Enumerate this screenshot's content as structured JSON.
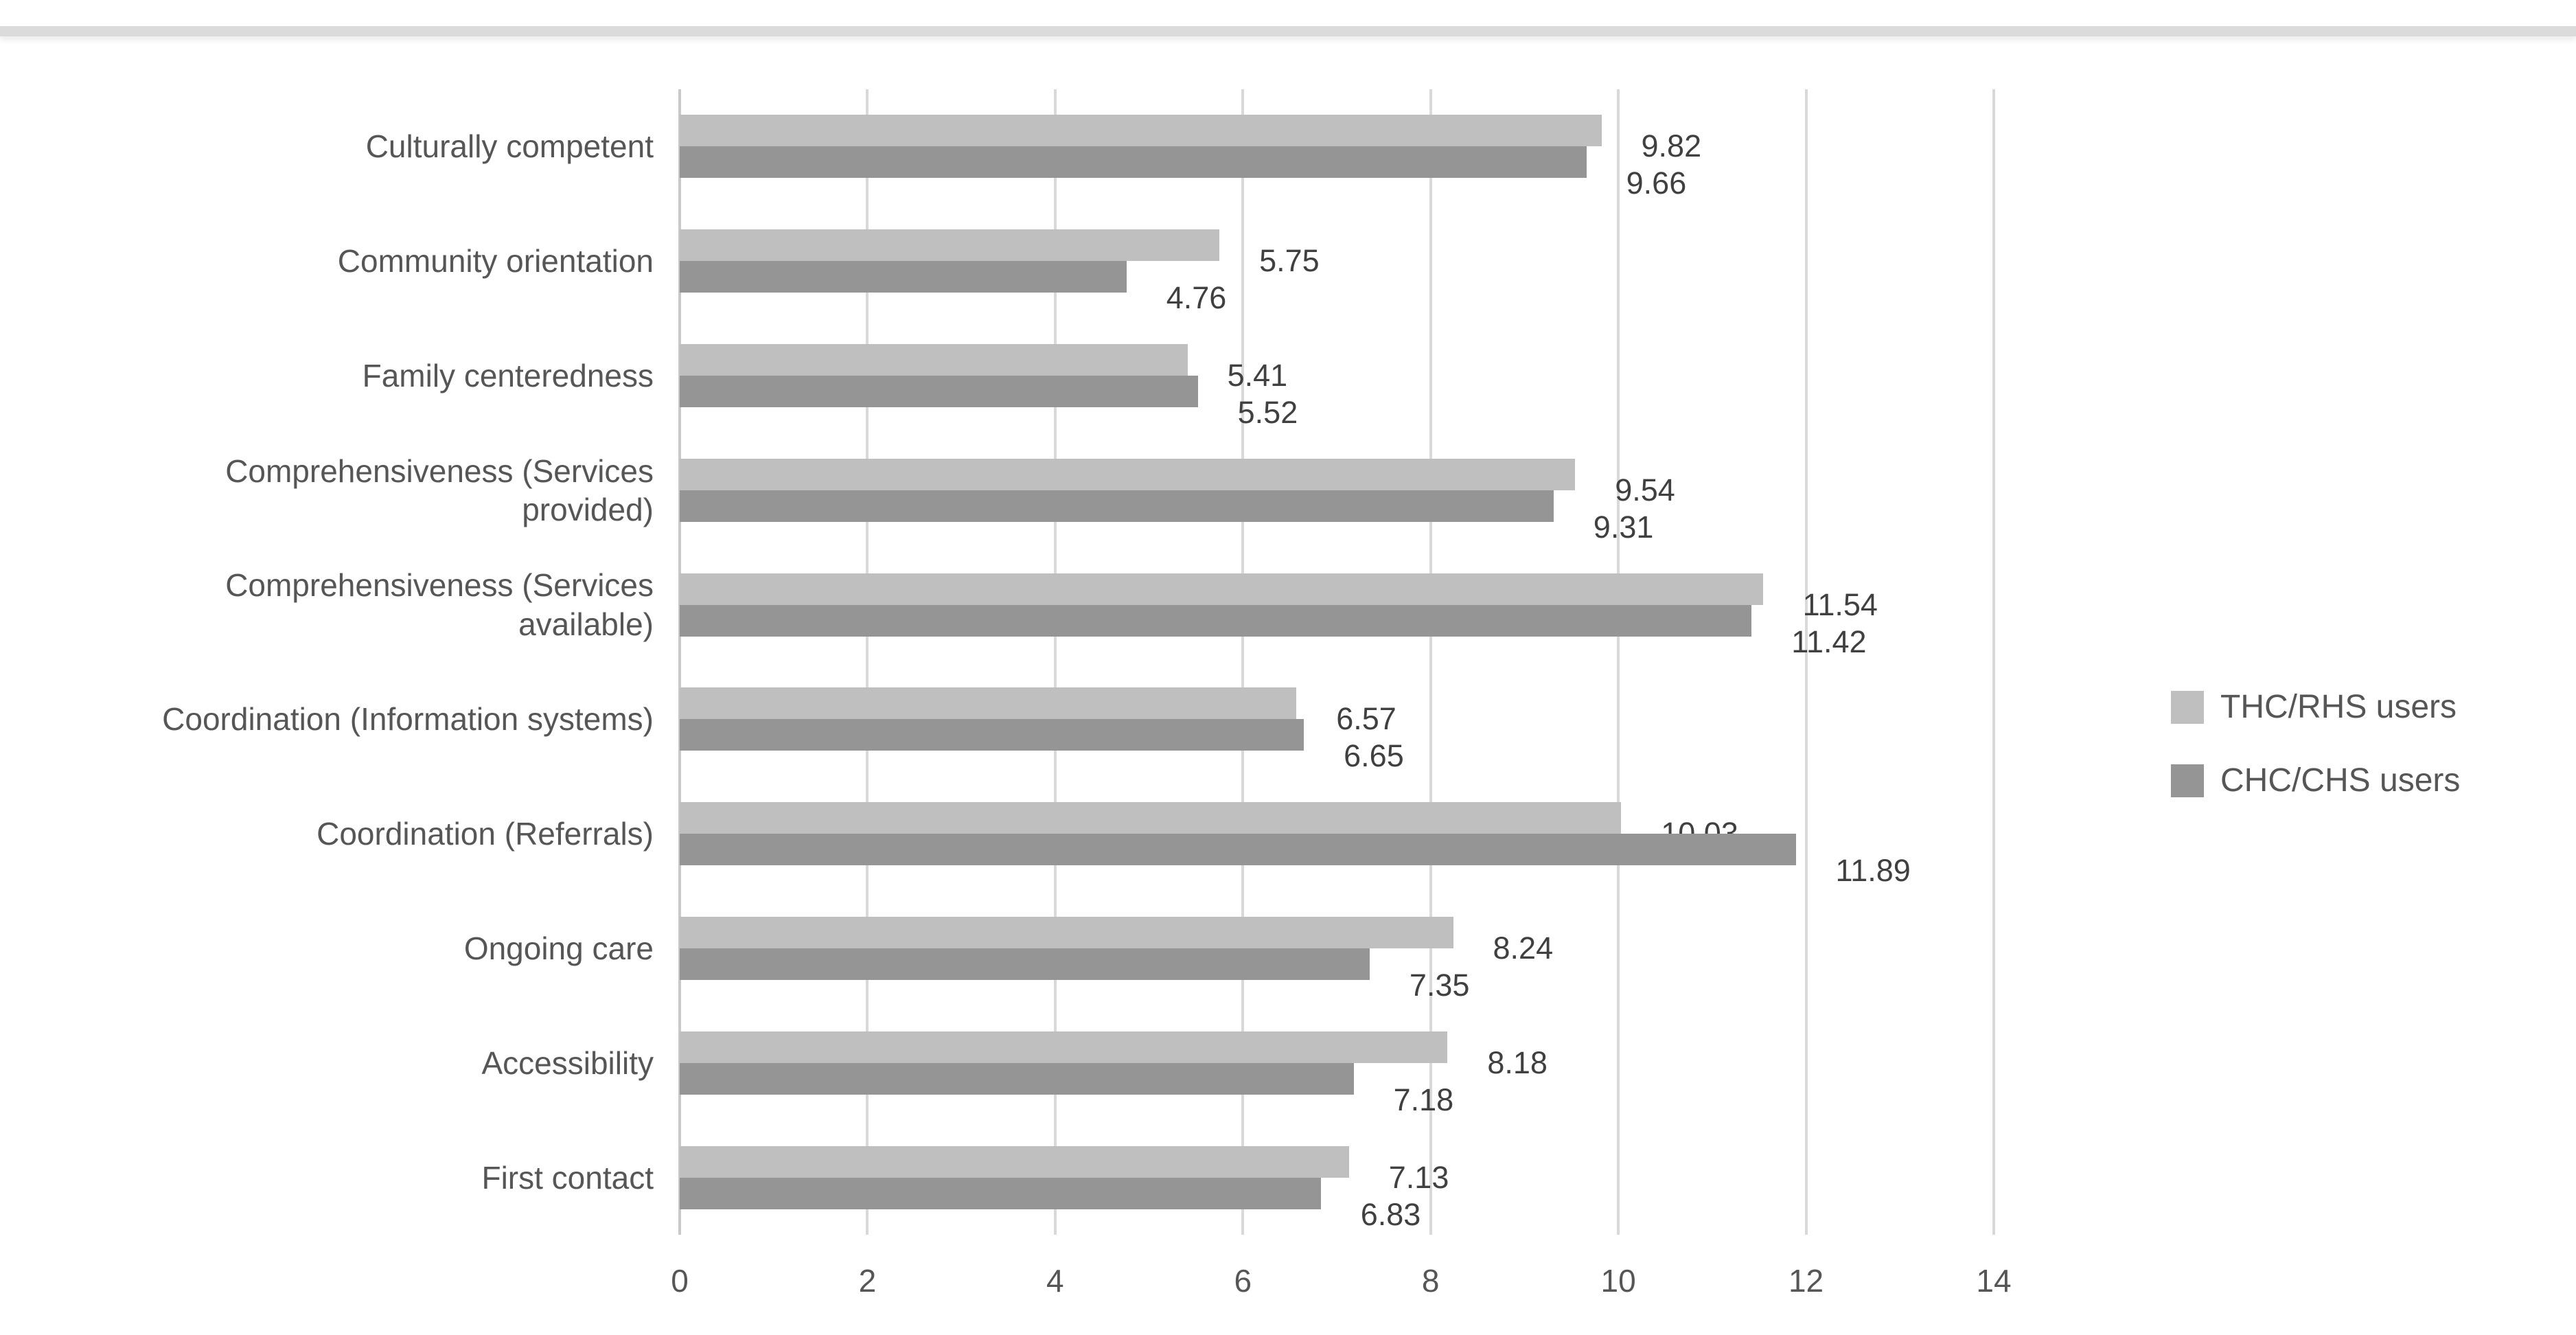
{
  "chart_data": {
    "type": "bar",
    "orientation": "horizontal",
    "title": "",
    "xlabel": "",
    "ylabel": "",
    "categories": [
      "Culturally competent",
      "Community orientation",
      "Family centeredness",
      "Comprehensiveness (Services provided)",
      "Comprehensiveness (Services available)",
      "Coordination (Information systems)",
      "Coordination (Referrals)",
      "Ongoing care",
      "Accessibility",
      "First contact"
    ],
    "series": [
      {
        "name": "THC/RHS users",
        "color": "#bfbfbf",
        "values": [
          9.82,
          5.75,
          5.41,
          9.54,
          11.54,
          6.57,
          10.03,
          8.24,
          8.18,
          7.13
        ]
      },
      {
        "name": "CHC/CHS users",
        "color": "#959595",
        "values": [
          9.66,
          4.76,
          5.52,
          9.31,
          11.42,
          6.65,
          11.89,
          7.35,
          7.18,
          6.83
        ]
      }
    ],
    "x_ticks": [
      "0",
      "2",
      "4",
      "6",
      "8",
      "10",
      "12",
      "14"
    ],
    "xlim": [
      0,
      14
    ],
    "grid": true,
    "legend_position": "right",
    "gridline_color": "#d9d9d9",
    "axis_line_color": "#c9c9c9",
    "text_color": "#565656",
    "data_label_color": "#404040"
  }
}
